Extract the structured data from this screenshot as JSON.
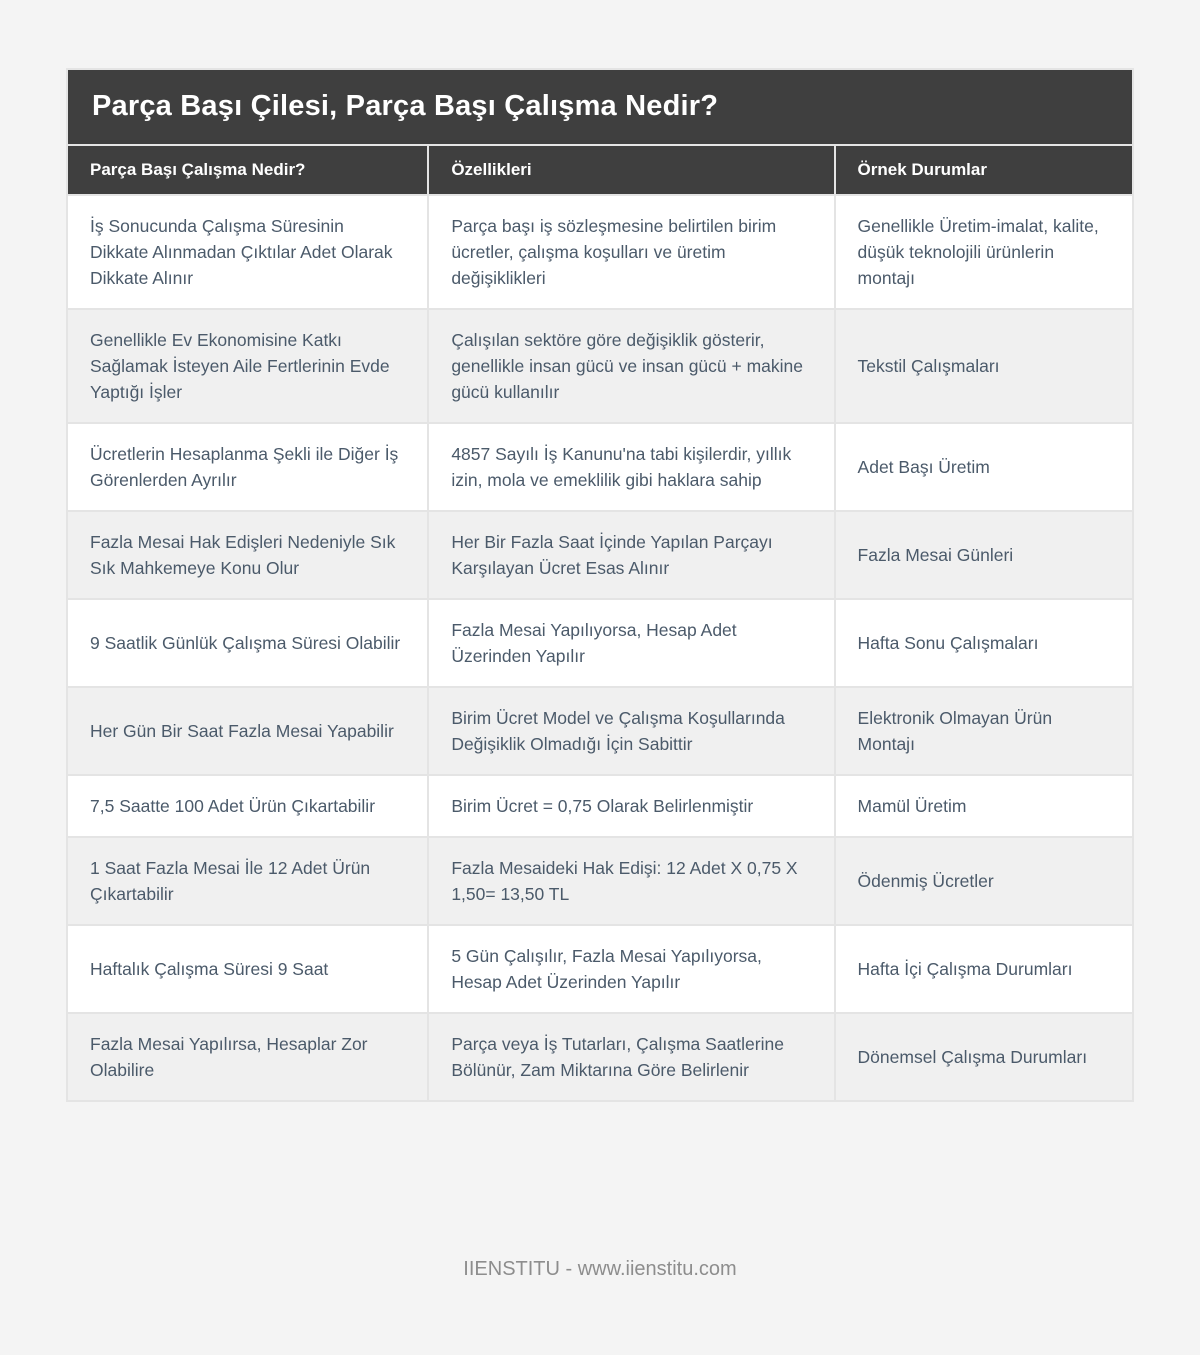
{
  "page": {
    "title": "Parça Başı Çilesi, Parça Başı Çalışma Nedir?",
    "footer": "IIENSTITU - www.iienstitu.com"
  },
  "table": {
    "columns": [
      "Parça Başı Çalışma Nedir?",
      "Özellikleri",
      "Örnek Durumlar"
    ],
    "rows": [
      [
        "İş Sonucunda Çalışma Süresinin Dikkate Alınmadan Çıktılar Adet Olarak Dikkate Alınır",
        "Parça başı iş sözleşmesine belirtilen birim ücretler, çalışma koşulları ve üretim değişiklikleri",
        "Genellikle Üretim-imalat, kalite, düşük teknolojili ürünlerin montajı"
      ],
      [
        "Genellikle Ev Ekonomisine Katkı Sağlamak İsteyen Aile Fertlerinin Evde Yaptığı İşler",
        "Çalışılan sektöre göre değişiklik gösterir, genellikle insan gücü ve insan gücü + makine gücü kullanılır",
        "Tekstil Çalışmaları"
      ],
      [
        "Ücretlerin Hesaplanma Şekli ile Diğer İş Görenlerden Ayrılır",
        "4857 Sayılı İş Kanunu'na tabi kişilerdir, yıllık izin, mola ve emeklilik gibi haklara sahip",
        "Adet Başı Üretim"
      ],
      [
        "Fazla Mesai Hak Edişleri Nedeniyle Sık Sık Mahkemeye Konu Olur",
        "Her Bir Fazla Saat İçinde Yapılan Parçayı Karşılayan Ücret Esas Alınır",
        "Fazla Mesai Günleri"
      ],
      [
        "9 Saatlik Günlük Çalışma Süresi Olabilir",
        "Fazla Mesai Yapılıyorsa, Hesap Adet Üzerinden Yapılır",
        "Hafta Sonu Çalışmaları"
      ],
      [
        "Her Gün Bir Saat Fazla Mesai Yapabilir",
        "Birim Ücret Model ve Çalışma Koşullarında Değişiklik Olmadığı İçin Sabittir",
        "Elektronik Olmayan Ürün Montajı"
      ],
      [
        "7,5 Saatte 100 Adet Ürün Çıkartabilir",
        "Birim Ücret = 0,75 Olarak Belirlenmiştir",
        "Mamül Üretim"
      ],
      [
        "1 Saat Fazla Mesai İle 12 Adet Ürün Çıkartabilir",
        "Fazla Mesaideki Hak Edişi: 12 Adet X 0,75 X 1,50= 13,50 TL",
        "Ödenmiş Ücretler"
      ],
      [
        "Haftalık Çalışma Süresi 9 Saat",
        "5 Gün Çalışılır, Fazla Mesai Yapılıyorsa, Hesap Adet Üzerinden Yapılır",
        "Hafta İçi Çalışma Durumları"
      ],
      [
        "Fazla Mesai Yapılırsa, Hesaplar Zor Olabilire",
        "Parça veya İş Tutarları, Çalışma Saatlerine Bölünür, Zam Miktarına Göre Belirlenir",
        "Dönemsel Çalışma Durumları"
      ]
    ]
  },
  "colors": {
    "page_bg": "#f4f4f4",
    "header_bg": "#3f3f3f",
    "header_text": "#ffffff",
    "body_text": "#4b5a6a",
    "row_alt_bg": "#f0f0f0",
    "footer_text": "#8d8d8d"
  }
}
